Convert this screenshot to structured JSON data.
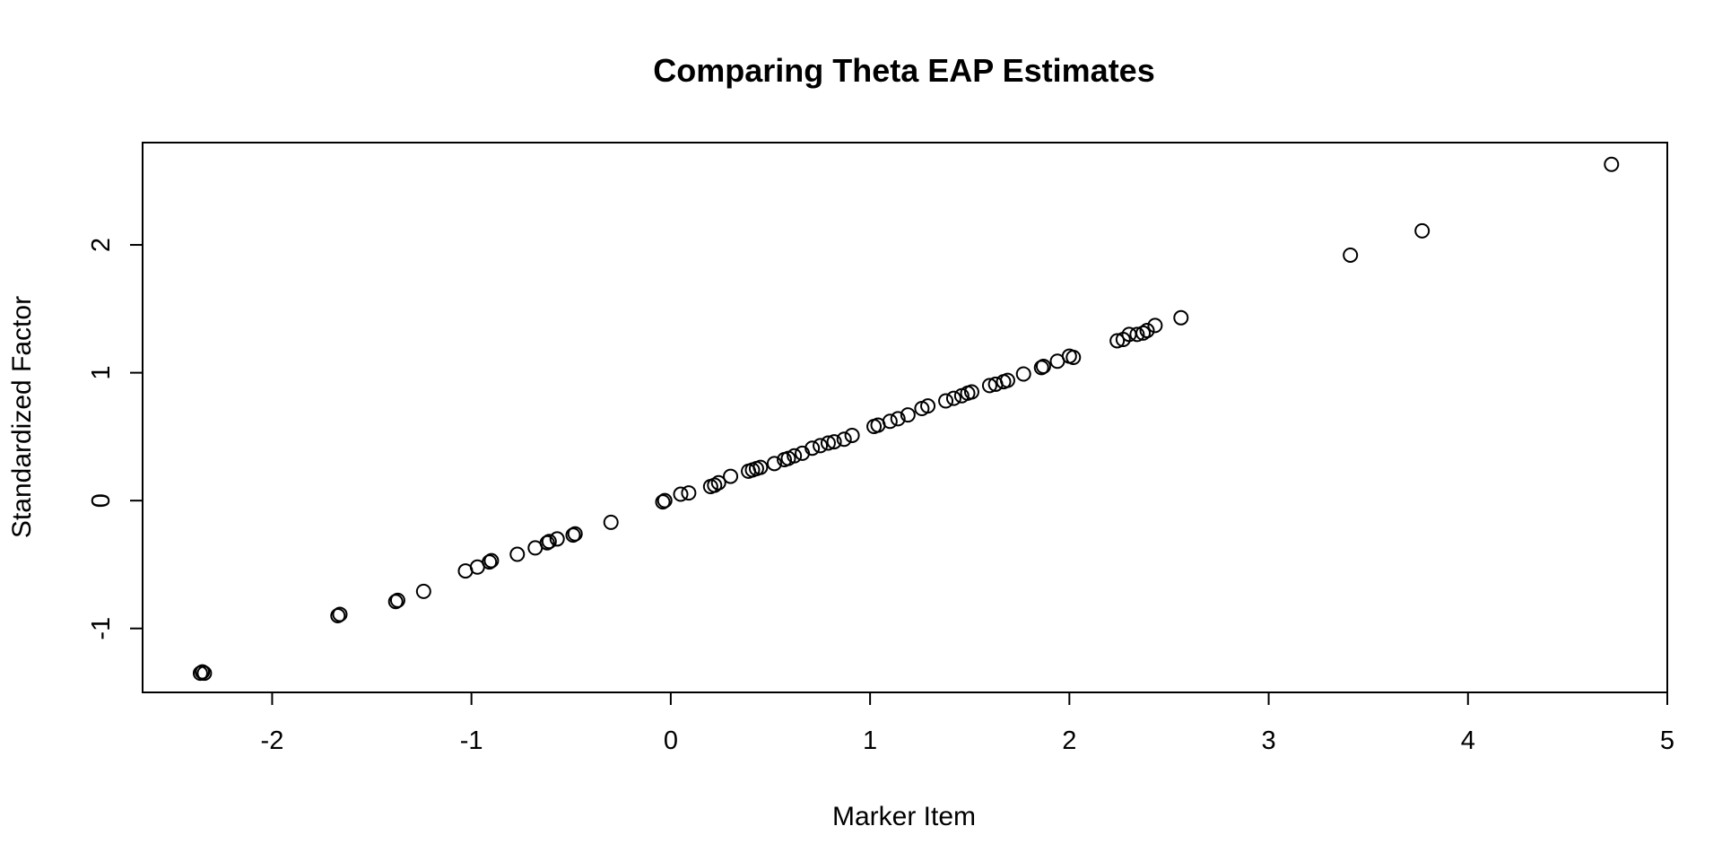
{
  "chart_data": {
    "type": "scatter",
    "title": "Comparing Theta EAP Estimates",
    "xlabel": "Marker Item",
    "ylabel": "Standardized Factor",
    "xlim": [
      -2.65,
      5.0
    ],
    "ylim": [
      -1.5,
      2.8
    ],
    "xticks": [
      -2,
      -1,
      0,
      1,
      2,
      3,
      4,
      5
    ],
    "yticks": [
      -1,
      0,
      1,
      2
    ],
    "xtick_labels": [
      "-2",
      "-1",
      "0",
      "1",
      "2",
      "3",
      "4",
      "5"
    ],
    "ytick_labels": [
      "-1",
      "0",
      "1",
      "2"
    ],
    "grid": false,
    "legend": "none",
    "marker": "open-circle",
    "x": [
      -2.36,
      -2.35,
      -2.34,
      -2.35,
      -1.67,
      -1.66,
      -1.38,
      -1.37,
      -1.24,
      -1.03,
      -0.97,
      -0.91,
      -0.9,
      -0.77,
      -0.68,
      -0.62,
      -0.61,
      -0.57,
      -0.49,
      -0.48,
      -0.3,
      -0.04,
      -0.03,
      0.05,
      0.09,
      0.2,
      0.22,
      0.24,
      0.3,
      0.39,
      0.41,
      0.43,
      0.45,
      0.52,
      0.57,
      0.59,
      0.62,
      0.66,
      0.71,
      0.75,
      0.79,
      0.82,
      0.87,
      0.91,
      1.02,
      1.04,
      1.1,
      1.14,
      1.19,
      1.26,
      1.29,
      1.38,
      1.42,
      1.46,
      1.49,
      1.51,
      1.6,
      1.63,
      1.67,
      1.69,
      1.77,
      1.86,
      1.87,
      1.94,
      2.0,
      2.02,
      2.24,
      2.27,
      2.3,
      2.34,
      2.37,
      2.39,
      2.43,
      2.56,
      3.41,
      3.77,
      4.72
    ],
    "y": [
      -1.35,
      -1.34,
      -1.35,
      -1.34,
      -0.9,
      -0.89,
      -0.79,
      -0.78,
      -0.71,
      -0.55,
      -0.52,
      -0.48,
      -0.47,
      -0.42,
      -0.37,
      -0.33,
      -0.32,
      -0.3,
      -0.27,
      -0.26,
      -0.17,
      -0.01,
      0.0,
      0.05,
      0.06,
      0.11,
      0.12,
      0.14,
      0.19,
      0.23,
      0.24,
      0.25,
      0.26,
      0.29,
      0.32,
      0.33,
      0.35,
      0.37,
      0.41,
      0.43,
      0.45,
      0.46,
      0.48,
      0.51,
      0.58,
      0.59,
      0.62,
      0.64,
      0.67,
      0.72,
      0.74,
      0.78,
      0.8,
      0.82,
      0.84,
      0.85,
      0.9,
      0.91,
      0.93,
      0.94,
      0.99,
      1.04,
      1.05,
      1.09,
      1.13,
      1.12,
      1.25,
      1.26,
      1.3,
      1.3,
      1.31,
      1.33,
      1.37,
      1.43,
      1.92,
      2.11,
      2.63
    ]
  }
}
